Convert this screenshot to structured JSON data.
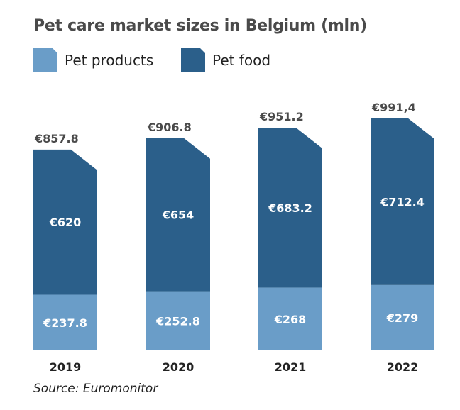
{
  "chart_data": {
    "type": "bar",
    "stacked": true,
    "title": "Pet care market sizes in Belgium (mln)",
    "categories": [
      "2019",
      "2020",
      "2021",
      "2022"
    ],
    "series": [
      {
        "name": "Pet products",
        "values": [
          237.8,
          252.8,
          268,
          279
        ],
        "labels": [
          "€237.8",
          "€252.8",
          "€268",
          "€279"
        ],
        "color": "#6a9dc8"
      },
      {
        "name": "Pet food",
        "values": [
          620,
          654,
          683.2,
          712.4
        ],
        "labels": [
          "€620",
          "€654",
          "€683.2",
          "€712.4"
        ],
        "color": "#2b5f8a"
      }
    ],
    "totals": [
      857.8,
      906.8,
      951.2,
      991.4
    ],
    "total_labels": [
      "€857.8",
      "€906.8",
      "€951.2",
      "€991,4"
    ],
    "legend_position": "top-left",
    "grid": false,
    "source": "Source: Euromonitor"
  }
}
